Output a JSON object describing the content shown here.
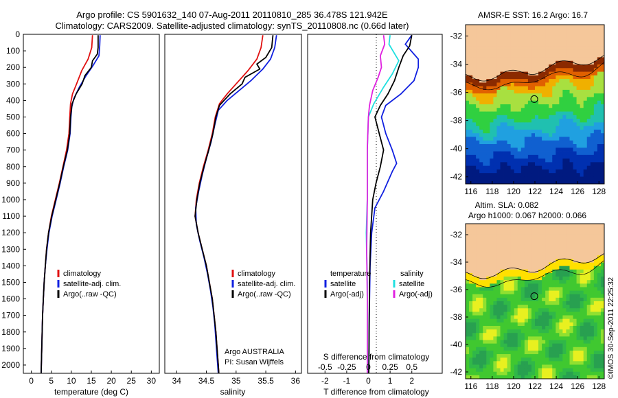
{
  "header": {
    "line1": "Argo profile: CS 5901632_140 07-Aug-2011 20110810_285 36.478S 121.942E",
    "line2": "Climatology: CARS2009. Satellite-adjusted climatology: synTS_20110808.nc (0.66d later)"
  },
  "colors": {
    "climatology": "#e01010",
    "satellite": "#1020e0",
    "argo": "#000000",
    "salinity_sat": "#20e0e0",
    "salinity_argo": "#e020e0",
    "land": "#f5c79a"
  },
  "chart_data": [
    {
      "type": "line",
      "title": "",
      "xlabel": "temperature (deg C)",
      "ylabel": "",
      "xlim": [
        -2,
        32
      ],
      "ylim": [
        2050,
        0
      ],
      "xticks": [
        "0",
        "5",
        "10",
        "15",
        "20",
        "25",
        "30"
      ],
      "yticks": [
        "0",
        "100",
        "200",
        "300",
        "400",
        "500",
        "600",
        "700",
        "800",
        "900",
        "1000",
        "1100",
        "1200",
        "1300",
        "1400",
        "1500",
        "1600",
        "1700",
        "1800",
        "1900",
        "2000"
      ],
      "legend": [
        "climatology",
        "satellite-adj. clim.",
        "Argo(..raw -QC)"
      ],
      "legend_position": "lower-right",
      "series": [
        {
          "name": "climatology",
          "color": "#e01010",
          "points": [
            [
              15.3,
              5
            ],
            [
              15.1,
              80
            ],
            [
              14.2,
              150
            ],
            [
              12.6,
              220
            ],
            [
              11.3,
              300
            ],
            [
              10.3,
              360
            ],
            [
              9.8,
              420
            ],
            [
              9.6,
              500
            ],
            [
              9.4,
              600
            ],
            [
              8.8,
              700
            ],
            [
              7.9,
              800
            ],
            [
              7.0,
              900
            ],
            [
              6.0,
              1000
            ],
            [
              5.0,
              1100
            ],
            [
              4.3,
              1200
            ],
            [
              3.8,
              1300
            ],
            [
              3.5,
              1400
            ],
            [
              3.2,
              1500
            ],
            [
              3.0,
              1600
            ],
            [
              2.8,
              1700
            ],
            [
              2.7,
              1800
            ],
            [
              2.6,
              1900
            ],
            [
              2.5,
              2000
            ],
            [
              2.45,
              2050
            ]
          ]
        },
        {
          "name": "satellite-adj. clim.",
          "color": "#1020e0",
          "points": [
            [
              17.2,
              5
            ],
            [
              17.1,
              70
            ],
            [
              16.9,
              130
            ],
            [
              15.4,
              190
            ],
            [
              13.7,
              250
            ],
            [
              12.0,
              320
            ],
            [
              10.6,
              390
            ],
            [
              10.1,
              440
            ],
            [
              9.9,
              500
            ],
            [
              9.7,
              600
            ],
            [
              9.1,
              700
            ],
            [
              8.1,
              800
            ],
            [
              7.2,
              900
            ],
            [
              6.2,
              1000
            ],
            [
              5.2,
              1100
            ],
            [
              4.4,
              1200
            ],
            [
              3.9,
              1300
            ],
            [
              3.5,
              1400
            ],
            [
              3.2,
              1500
            ],
            [
              3.0,
              1600
            ],
            [
              2.8,
              1700
            ],
            [
              2.7,
              1800
            ],
            [
              2.6,
              1900
            ],
            [
              2.5,
              2000
            ],
            [
              2.45,
              2050
            ]
          ]
        },
        {
          "name": "Argo(..raw -QC)",
          "color": "#000000",
          "points": [
            [
              16.7,
              5
            ],
            [
              16.7,
              80
            ],
            [
              16.5,
              120
            ],
            [
              15.3,
              160
            ],
            [
              15.0,
              200
            ],
            [
              13.4,
              250
            ],
            [
              12.7,
              300
            ],
            [
              11.2,
              360
            ],
            [
              10.2,
              420
            ],
            [
              9.8,
              500
            ],
            [
              9.6,
              600
            ],
            [
              9.0,
              700
            ],
            [
              8.0,
              800
            ],
            [
              7.1,
              900
            ],
            [
              6.1,
              1000
            ],
            [
              5.1,
              1100
            ],
            [
              4.3,
              1200
            ],
            [
              3.8,
              1300
            ],
            [
              3.5,
              1400
            ],
            [
              3.2,
              1500
            ],
            [
              3.0,
              1600
            ],
            [
              2.8,
              1700
            ],
            [
              2.7,
              1800
            ],
            [
              2.6,
              1900
            ],
            [
              2.5,
              2000
            ],
            [
              2.45,
              2050
            ]
          ]
        }
      ]
    },
    {
      "type": "line",
      "title": "",
      "xlabel": "salinity",
      "ylabel": "",
      "xlim": [
        33.8,
        36.1
      ],
      "ylim": [
        2050,
        0
      ],
      "xticks": [
        "34",
        "34.5",
        "35",
        "35.5",
        "36"
      ],
      "legend": [
        "climatology",
        "satellite-adj. clim.",
        "Argo(..raw -QC)"
      ],
      "legend_position": "lower-right",
      "annotation": [
        "Argo AUSTRALIA",
        "PI: Susan Wijffels"
      ],
      "series": [
        {
          "name": "climatology",
          "color": "#e01010",
          "points": [
            [
              35.45,
              5
            ],
            [
              35.42,
              80
            ],
            [
              35.35,
              150
            ],
            [
              35.2,
              220
            ],
            [
              35.0,
              300
            ],
            [
              34.85,
              360
            ],
            [
              34.72,
              420
            ],
            [
              34.65,
              500
            ],
            [
              34.6,
              600
            ],
            [
              34.53,
              700
            ],
            [
              34.45,
              800
            ],
            [
              34.38,
              900
            ],
            [
              34.33,
              1000
            ],
            [
              34.31,
              1100
            ],
            [
              34.36,
              1200
            ],
            [
              34.43,
              1300
            ],
            [
              34.5,
              1400
            ],
            [
              34.55,
              1500
            ],
            [
              34.6,
              1600
            ],
            [
              34.63,
              1700
            ],
            [
              34.66,
              1800
            ],
            [
              34.68,
              1900
            ],
            [
              34.7,
              2000
            ],
            [
              34.71,
              2050
            ]
          ]
        },
        {
          "name": "satellite-adj. clim.",
          "color": "#1020e0",
          "points": [
            [
              35.68,
              5
            ],
            [
              35.65,
              80
            ],
            [
              35.58,
              150
            ],
            [
              35.45,
              210
            ],
            [
              35.25,
              280
            ],
            [
              35.05,
              340
            ],
            [
              34.85,
              400
            ],
            [
              34.7,
              460
            ],
            [
              34.64,
              550
            ],
            [
              34.58,
              650
            ],
            [
              34.5,
              750
            ],
            [
              34.43,
              850
            ],
            [
              34.37,
              950
            ],
            [
              34.32,
              1050
            ],
            [
              34.33,
              1150
            ],
            [
              34.39,
              1250
            ],
            [
              34.46,
              1350
            ],
            [
              34.52,
              1450
            ],
            [
              34.57,
              1550
            ],
            [
              34.61,
              1650
            ],
            [
              34.64,
              1750
            ],
            [
              34.66,
              1850
            ],
            [
              34.68,
              1950
            ],
            [
              34.7,
              2050
            ]
          ]
        },
        {
          "name": "Argo(..raw -QC)",
          "color": "#000000",
          "points": [
            [
              35.62,
              5
            ],
            [
              35.6,
              80
            ],
            [
              35.5,
              140
            ],
            [
              35.35,
              180
            ],
            [
              35.4,
              210
            ],
            [
              35.15,
              260
            ],
            [
              35.1,
              300
            ],
            [
              34.9,
              360
            ],
            [
              34.72,
              430
            ],
            [
              34.66,
              500
            ],
            [
              34.61,
              600
            ],
            [
              34.54,
              700
            ],
            [
              34.46,
              800
            ],
            [
              34.39,
              900
            ],
            [
              34.34,
              1000
            ],
            [
              34.31,
              1100
            ],
            [
              34.36,
              1200
            ],
            [
              34.43,
              1300
            ],
            [
              34.5,
              1400
            ],
            [
              34.55,
              1500
            ],
            [
              34.6,
              1600
            ],
            [
              34.63,
              1700
            ],
            [
              34.66,
              1800
            ],
            [
              34.68,
              1900
            ],
            [
              34.7,
              2000
            ],
            [
              34.71,
              2050
            ]
          ]
        }
      ]
    },
    {
      "type": "line",
      "title": "",
      "xlabel": "T difference from climatology",
      "xlabel_top": "S difference from climatology",
      "ylabel": "",
      "xlim": [
        -2.8,
        3.4
      ],
      "ylim": [
        2050,
        0
      ],
      "xticks": [
        "-2",
        "-1",
        "0",
        "1",
        "2"
      ],
      "xticks_top": [
        "-0.5",
        "-0.25",
        "0",
        "0.25",
        "0.5"
      ],
      "legend": [
        "temperature",
        "satellite",
        "Argo(-adj)",
        "salinity",
        "satellite",
        "Argo(-adj)"
      ],
      "legend_position": "lower-center",
      "series": [
        {
          "name": "satellite",
          "group": "temperature",
          "color": "#1020e0",
          "points": [
            [
              2.0,
              5
            ],
            [
              1.7,
              60
            ],
            [
              2.3,
              150
            ],
            [
              2.3,
              200
            ],
            [
              2.1,
              280
            ],
            [
              1.5,
              360
            ],
            [
              0.8,
              430
            ],
            [
              0.6,
              500
            ],
            [
              0.8,
              600
            ],
            [
              1.1,
              700
            ],
            [
              1.3,
              780
            ],
            [
              1.1,
              830
            ],
            [
              0.7,
              950
            ],
            [
              0.3,
              1050
            ],
            [
              0.15,
              1200
            ],
            [
              0.08,
              1400
            ],
            [
              0.04,
              1700
            ],
            [
              0.02,
              2050
            ]
          ]
        },
        {
          "name": "Argo(-adj)",
          "group": "temperature",
          "color": "#000000",
          "points": [
            [
              2.0,
              5
            ],
            [
              1.9,
              70
            ],
            [
              1.6,
              130
            ],
            [
              1.4,
              200
            ],
            [
              1.2,
              280
            ],
            [
              0.9,
              360
            ],
            [
              0.55,
              430
            ],
            [
              0.3,
              500
            ],
            [
              0.5,
              600
            ],
            [
              0.7,
              700
            ],
            [
              0.55,
              800
            ],
            [
              0.35,
              900
            ],
            [
              0.2,
              1000
            ],
            [
              0.1,
              1200
            ],
            [
              0.05,
              1500
            ],
            [
              0.03,
              1800
            ],
            [
              0.02,
              2050
            ]
          ]
        },
        {
          "name": "satellite",
          "group": "salinity",
          "color": "#20e0e0",
          "points": [
            [
              1.0,
              5
            ],
            [
              0.95,
              60
            ],
            [
              1.4,
              160
            ],
            [
              1.1,
              240
            ],
            [
              0.7,
              320
            ],
            [
              0.25,
              420
            ],
            [
              0.0,
              500
            ],
            [
              -0.05,
              700
            ],
            [
              -0.05,
              1000
            ],
            [
              -0.1,
              1200
            ],
            [
              -0.05,
              1500
            ],
            [
              -0.05,
              2050
            ]
          ]
        },
        {
          "name": "Argo(-adj)",
          "group": "salinity",
          "color": "#e020e0",
          "points": [
            [
              0.7,
              5
            ],
            [
              0.75,
              60
            ],
            [
              0.55,
              130
            ],
            [
              0.6,
              200
            ],
            [
              0.45,
              260
            ],
            [
              0.2,
              340
            ],
            [
              0.05,
              430
            ],
            [
              0.0,
              500
            ],
            [
              -0.05,
              700
            ],
            [
              -0.05,
              1000
            ],
            [
              -0.08,
              1300
            ],
            [
              -0.05,
              1600
            ],
            [
              -0.05,
              2050
            ]
          ]
        }
      ]
    },
    {
      "type": "heatmap",
      "title": "AMSR-E SST: 16.2  Argo: 16.7",
      "xlim": [
        115.5,
        128.5
      ],
      "ylim": [
        -42.5,
        -31.2
      ],
      "xticks": [
        "116",
        "118",
        "120",
        "122",
        "124",
        "126",
        "128"
      ],
      "yticks": [
        "-32",
        "-34",
        "-36",
        "-38",
        "-40",
        "-42"
      ],
      "marker": {
        "lon": 121.94,
        "lat": -36.48
      }
    },
    {
      "type": "heatmap",
      "title": "Altim. SLA: 0.082",
      "subtitle": "Argo h1000: 0.067 h2000: 0.066",
      "xlim": [
        115.5,
        128.5
      ],
      "ylim": [
        -42.5,
        -31.2
      ],
      "xticks": [
        "116",
        "118",
        "120",
        "122",
        "124",
        "126",
        "128"
      ],
      "yticks": [
        "-32",
        "-34",
        "-36",
        "-38",
        "-40",
        "-42"
      ],
      "marker": {
        "lon": 121.94,
        "lat": -36.48
      }
    }
  ],
  "footer": {
    "stamp": "©IMOS 30-Sep-2011 22:25:32"
  }
}
